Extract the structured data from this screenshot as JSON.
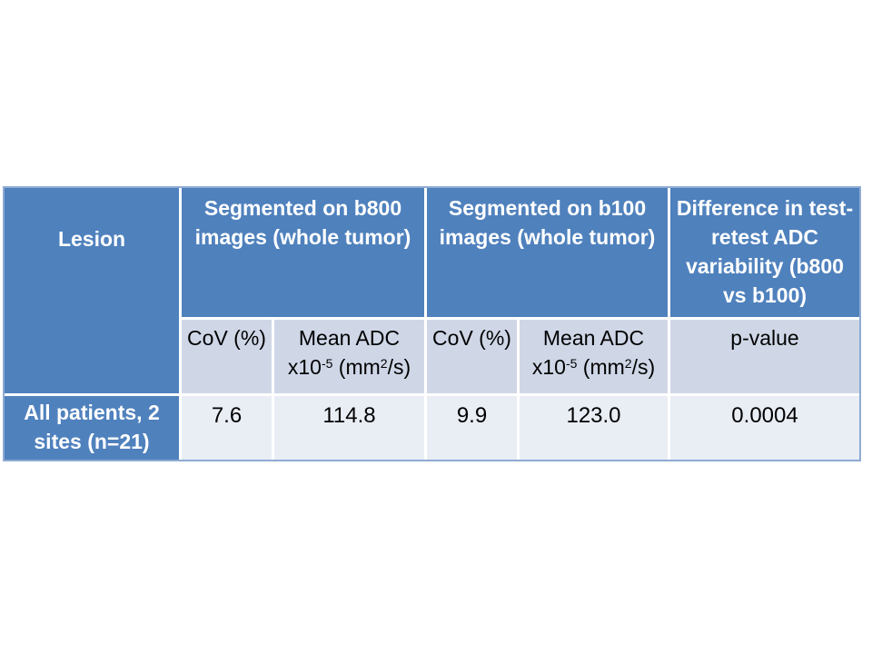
{
  "slide": {
    "background": "#ffffff"
  },
  "table": {
    "colors": {
      "header_bg": "#4f81bd",
      "subheader_bg": "#cfd7e7",
      "data_bg": "#e9edf4",
      "gridline": "#ffffff",
      "outer_border": "#8eabd3",
      "header_text": "#ffffff",
      "body_text": "#000000"
    },
    "header_row1": {
      "lesion": "Lesion",
      "b800": "Segmented on b800 images (whole tumor)",
      "b100": "Segmented on b100 images (whole tumor)",
      "difference": "Difference in test-retest ADC variability (b800 vs b100)"
    },
    "header_row2": {
      "cov": "CoV (%)",
      "mean_adc": {
        "line1": "Mean ADC",
        "base": "x10",
        "exponent": "-5",
        "unit_open": " (mm",
        "unit_exponent": "2",
        "unit_close": "/s)"
      },
      "p_value": "p-value"
    },
    "data_row": {
      "label": "All patients, 2 sites (n=21)",
      "cov_b800": "7.6",
      "mean_adc_b800": "114.8",
      "cov_b100": "9.9",
      "mean_adc_b100": "123.0",
      "p_value": "0.0004"
    }
  }
}
